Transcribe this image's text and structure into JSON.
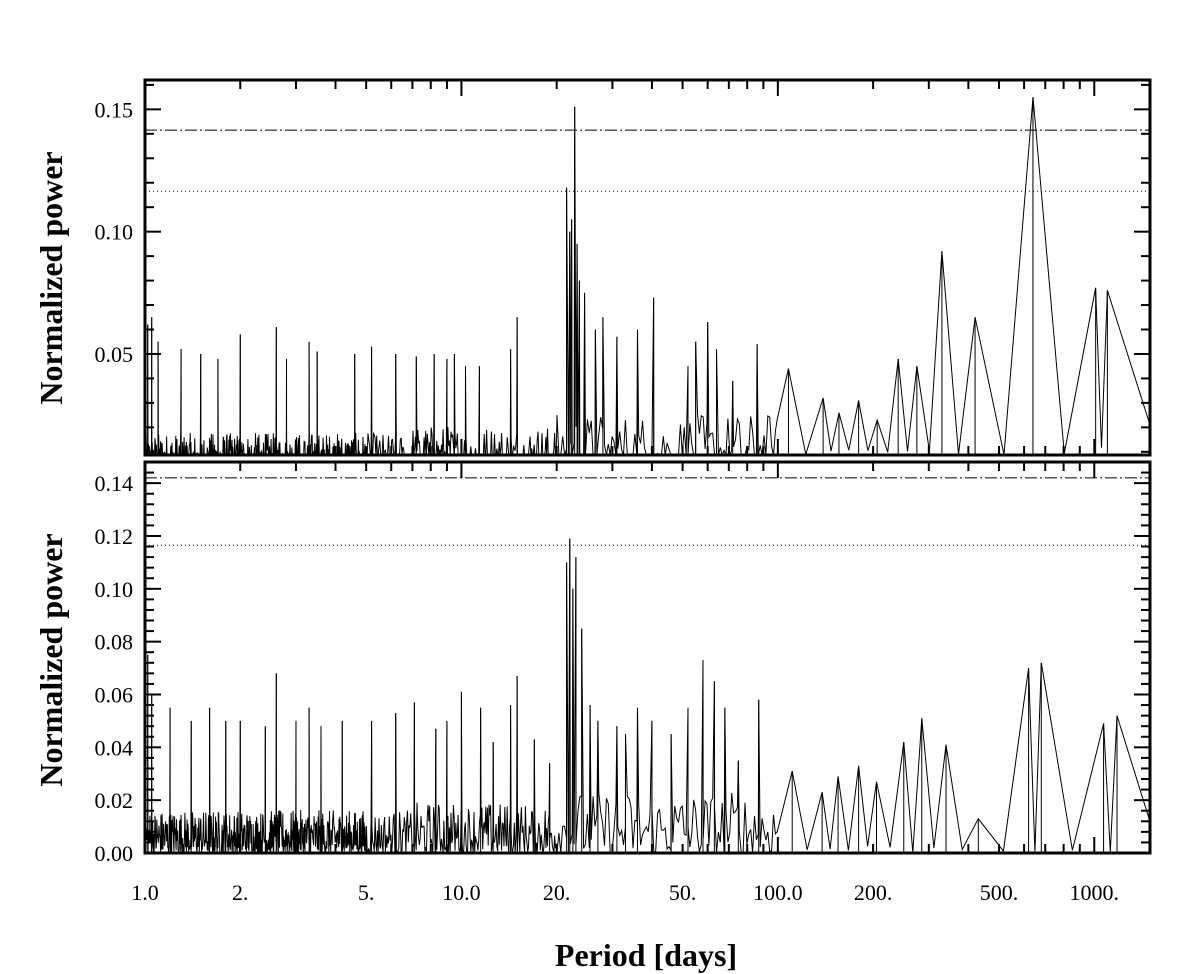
{
  "chart_data": [
    {
      "type": "line",
      "panel": "top",
      "title": "",
      "xlabel": "",
      "ylabel": "Normalized power",
      "x_scale": "log",
      "xlim": [
        1.0,
        1500
      ],
      "ylim": [
        0.0087,
        0.162
      ],
      "y_ticks": [
        0.05,
        0.1,
        0.15
      ],
      "y_tick_labels": [
        "0.05",
        "0.10",
        "0.15"
      ],
      "reference_lines": [
        {
          "style": "dash-dot",
          "y": 0.1415
        },
        {
          "style": "dotted",
          "y": 0.1165
        }
      ],
      "peaks": {
        "x": [
          1.02,
          1.05,
          1.1,
          1.3,
          1.5,
          1.7,
          2.0,
          2.6,
          2.8,
          3.3,
          3.5,
          4.6,
          5.2,
          6.2,
          7.2,
          8.2,
          9.0,
          9.5,
          10.3,
          11.4,
          14.3,
          15.0,
          21.5,
          22.0,
          22.3,
          22.8,
          23.2,
          23.6,
          24.5,
          26.5,
          28.0,
          31.0,
          36.0,
          40.5,
          52.0,
          55.0,
          60.0,
          64.0,
          72.0,
          86.0,
          108.0,
          139.0,
          156.0,
          180.0,
          206.0,
          240.0,
          275.0,
          330.0,
          420.0,
          640.0,
          1010.0,
          1100.0
        ],
        "y": [
          0.062,
          0.065,
          0.055,
          0.052,
          0.05,
          0.048,
          0.058,
          0.061,
          0.048,
          0.055,
          0.051,
          0.05,
          0.053,
          0.05,
          0.049,
          0.05,
          0.048,
          0.05,
          0.045,
          0.045,
          0.052,
          0.065,
          0.118,
          0.1,
          0.105,
          0.151,
          0.095,
          0.08,
          0.075,
          0.06,
          0.065,
          0.057,
          0.06,
          0.073,
          0.045,
          0.055,
          0.063,
          0.052,
          0.039,
          0.054,
          0.044,
          0.032,
          0.026,
          0.031,
          0.023,
          0.048,
          0.045,
          0.092,
          0.065,
          0.155,
          0.077,
          0.076
        ]
      }
    },
    {
      "type": "line",
      "panel": "bottom",
      "title": "",
      "xlabel": "Period [days]",
      "ylabel": "Normalized power",
      "x_scale": "log",
      "xlim": [
        1.0,
        1500
      ],
      "ylim": [
        0.0,
        0.148
      ],
      "x_tick_labels": [
        "1.0",
        "2.",
        "5.",
        "10.0",
        "20.",
        "50.",
        "100.0",
        "200.",
        "500.",
        "1000."
      ],
      "x_ticks": [
        1.0,
        2.0,
        5.0,
        10.0,
        20.0,
        50.0,
        100.0,
        200.0,
        500.0,
        1000.0
      ],
      "y_ticks": [
        0.0,
        0.02,
        0.04,
        0.06,
        0.08,
        0.1,
        0.12,
        0.14
      ],
      "y_tick_labels": [
        "0.00",
        "0.02",
        "0.04",
        "0.06",
        "0.08",
        "0.10",
        "0.12",
        "0.14"
      ],
      "reference_lines": [
        {
          "style": "dash-dot",
          "y": 0.142
        },
        {
          "style": "dotted",
          "y": 0.1165
        }
      ],
      "peaks": {
        "x": [
          1.02,
          1.05,
          1.2,
          1.4,
          1.6,
          1.8,
          2.0,
          2.4,
          2.6,
          3.0,
          3.3,
          3.6,
          4.2,
          5.2,
          6.2,
          7.1,
          8.3,
          9.0,
          10.0,
          11.5,
          12.6,
          14.3,
          15.0,
          17.0,
          19.0,
          21.5,
          22.0,
          22.5,
          23.0,
          24.0,
          25.5,
          27.0,
          31.0,
          33.0,
          36.0,
          40.0,
          46.0,
          52.0,
          58.0,
          63.0,
          68.0,
          75.0,
          87.0,
          111.0,
          138.0,
          155.0,
          180.0,
          205.0,
          250.0,
          285.0,
          340.0,
          430.0,
          620.0,
          680.0,
          1070.0,
          1180.0
        ],
        "y": [
          0.075,
          0.06,
          0.055,
          0.05,
          0.055,
          0.05,
          0.05,
          0.048,
          0.068,
          0.05,
          0.055,
          0.048,
          0.05,
          0.05,
          0.053,
          0.057,
          0.047,
          0.05,
          0.061,
          0.055,
          0.042,
          0.056,
          0.067,
          0.043,
          0.034,
          0.11,
          0.119,
          0.1,
          0.112,
          0.085,
          0.056,
          0.05,
          0.048,
          0.045,
          0.055,
          0.05,
          0.045,
          0.055,
          0.073,
          0.065,
          0.055,
          0.035,
          0.058,
          0.031,
          0.023,
          0.029,
          0.033,
          0.027,
          0.042,
          0.051,
          0.041,
          0.013,
          0.07,
          0.072,
          0.049,
          0.052
        ]
      }
    }
  ]
}
